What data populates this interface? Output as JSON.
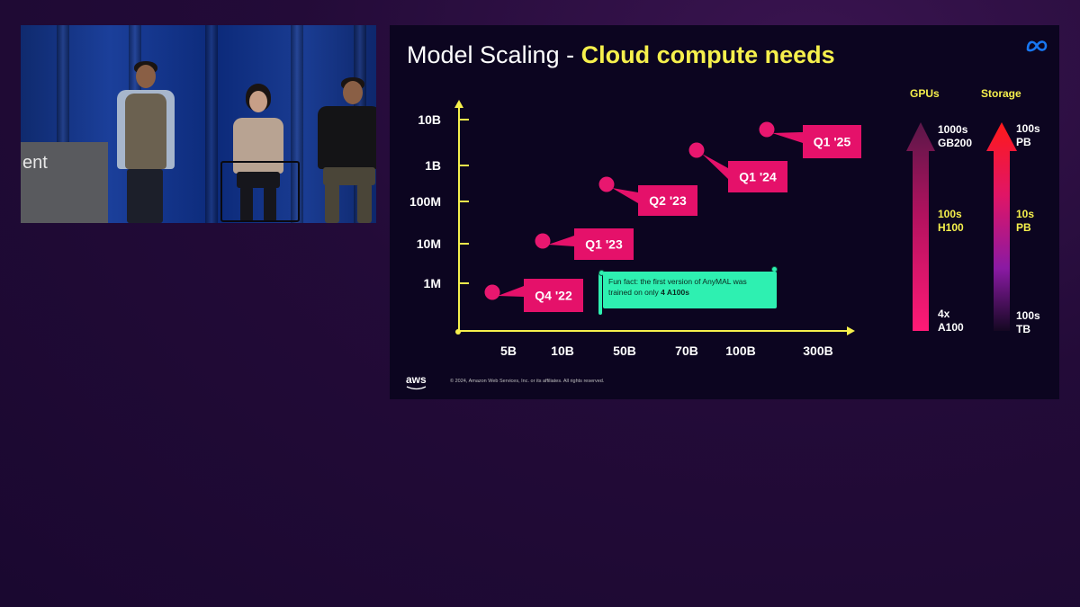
{
  "video": {
    "stage_sign_text": "ent"
  },
  "slide": {
    "title_plain": "Model Scaling - ",
    "title_accent": "Cloud compute needs",
    "fun_fact_text": "Fun fact: the first version of AnyMAL was trained on only ",
    "fun_fact_bold": "4 A100s",
    "columns": {
      "gpus_label": "GPUs",
      "storage_label": "Storage"
    },
    "gpu_tiers": [
      {
        "line1": "1000s",
        "line2": "GB200",
        "color": "#ffffff"
      },
      {
        "line1": "100s",
        "line2": "H100",
        "color": "#f6f04c"
      },
      {
        "line1": "4x",
        "line2": "A100",
        "color": "#ffffff"
      }
    ],
    "storage_tiers": [
      {
        "line1": "100s",
        "line2": "PB",
        "color": "#ffffff"
      },
      {
        "line1": "10s",
        "line2": "PB",
        "color": "#f6f04c"
      },
      {
        "line1": "100s",
        "line2": "TB",
        "color": "#ffffff"
      }
    ],
    "footer_logo": "aws",
    "copyright": "© 2024, Amazon Web Services, Inc. or its affiliates. All rights reserved."
  },
  "colors": {
    "accent_yellow": "#f6f04c",
    "point_pink": "#e8176f",
    "label_box": "#e5116a",
    "fun_fact_green": "#2ef0b1",
    "meta_blue": "#1877f2"
  },
  "chart_data": {
    "type": "scatter",
    "title": "Model Scaling - Cloud compute needs",
    "x_ticks": [
      "5B",
      "10B",
      "50B",
      "70B",
      "100B",
      "300B"
    ],
    "y_ticks": [
      "1M",
      "10M",
      "100M",
      "1B",
      "10B"
    ],
    "points": [
      {
        "label": "Q4 '22",
        "x": "~4B",
        "y": "~0.8M"
      },
      {
        "label": "Q1 '23",
        "x": "~8B",
        "y": "~12M"
      },
      {
        "label": "Q2 '23",
        "x": "~40B",
        "y": "~300M"
      },
      {
        "label": "Q1 '24",
        "x": "~70B",
        "y": "~2B"
      },
      {
        "label": "Q1 '25",
        "x": "~150B",
        "y": "~15B"
      }
    ],
    "grid": false,
    "legend": "none"
  }
}
